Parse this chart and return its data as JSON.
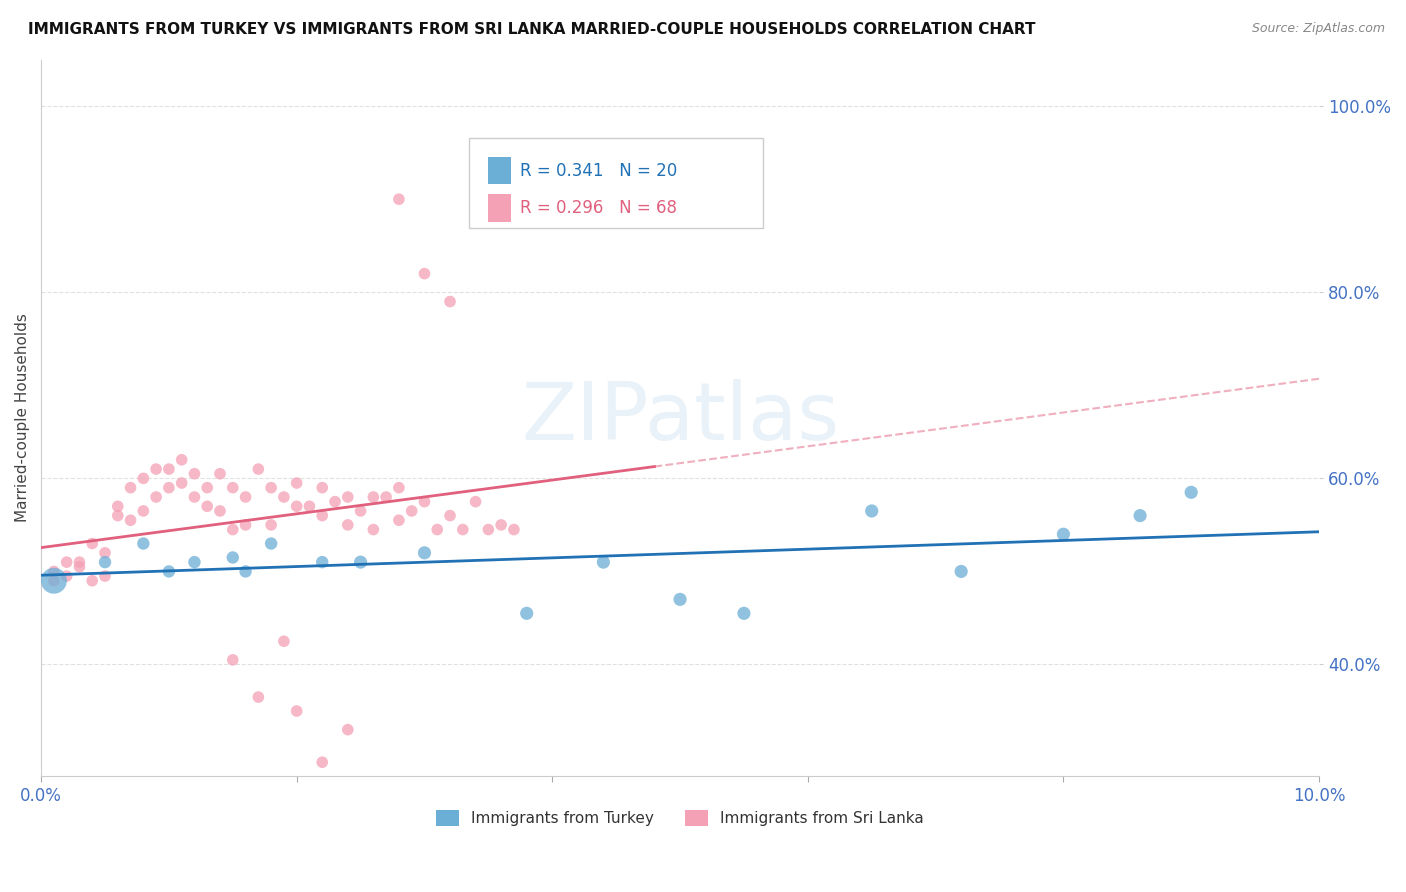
{
  "title": "IMMIGRANTS FROM TURKEY VS IMMIGRANTS FROM SRI LANKA MARRIED-COUPLE HOUSEHOLDS CORRELATION CHART",
  "source": "Source: ZipAtlas.com",
  "ylabel": "Married-couple Households",
  "xlim": [
    0.0,
    0.1
  ],
  "ylim": [
    0.28,
    1.05
  ],
  "yticks": [
    0.4,
    0.6,
    0.8,
    1.0
  ],
  "yticklabels": [
    "40.0%",
    "60.0%",
    "80.0%",
    "100.0%"
  ],
  "turkey_R": 0.341,
  "turkey_N": 20,
  "srilanka_R": 0.296,
  "srilanka_N": 68,
  "background_color": "#ffffff",
  "turkey_color": "#6baed6",
  "turkey_line_color": "#2171b5",
  "srilanka_color": "#f4a0b5",
  "srilanka_line_color": "#e0607e",
  "turkey_x": [
    0.001,
    0.005,
    0.008,
    0.01,
    0.012,
    0.015,
    0.016,
    0.018,
    0.022,
    0.025,
    0.03,
    0.038,
    0.044,
    0.05,
    0.055,
    0.065,
    0.072,
    0.08,
    0.086,
    0.09
  ],
  "turkey_y": [
    0.49,
    0.51,
    0.53,
    0.5,
    0.51,
    0.515,
    0.5,
    0.53,
    0.51,
    0.51,
    0.52,
    0.455,
    0.51,
    0.47,
    0.455,
    0.565,
    0.5,
    0.54,
    0.56,
    0.585
  ],
  "turkey_size": [
    350,
    80,
    80,
    80,
    80,
    80,
    80,
    80,
    80,
    90,
    90,
    90,
    90,
    90,
    90,
    90,
    90,
    90,
    90,
    90
  ],
  "srilanka_x": [
    0.001,
    0.001,
    0.002,
    0.002,
    0.003,
    0.003,
    0.004,
    0.004,
    0.005,
    0.005,
    0.006,
    0.006,
    0.007,
    0.007,
    0.008,
    0.008,
    0.009,
    0.009,
    0.01,
    0.01,
    0.011,
    0.011,
    0.012,
    0.012,
    0.013,
    0.013,
    0.014,
    0.014,
    0.015,
    0.015,
    0.016,
    0.016,
    0.017,
    0.018,
    0.018,
    0.019,
    0.02,
    0.02,
    0.021,
    0.022,
    0.022,
    0.023,
    0.024,
    0.024,
    0.025,
    0.026,
    0.026,
    0.027,
    0.028,
    0.028,
    0.029,
    0.03,
    0.031,
    0.032,
    0.033,
    0.034,
    0.035,
    0.036,
    0.037,
    0.02,
    0.022,
    0.024,
    0.015,
    0.017,
    0.019,
    0.028,
    0.03,
    0.032
  ],
  "srilanka_y": [
    0.49,
    0.5,
    0.51,
    0.495,
    0.51,
    0.505,
    0.49,
    0.53,
    0.495,
    0.52,
    0.56,
    0.57,
    0.555,
    0.59,
    0.565,
    0.6,
    0.58,
    0.61,
    0.59,
    0.61,
    0.62,
    0.595,
    0.58,
    0.605,
    0.59,
    0.57,
    0.605,
    0.565,
    0.545,
    0.59,
    0.58,
    0.55,
    0.61,
    0.59,
    0.55,
    0.58,
    0.595,
    0.57,
    0.57,
    0.56,
    0.59,
    0.575,
    0.58,
    0.55,
    0.565,
    0.58,
    0.545,
    0.58,
    0.555,
    0.59,
    0.565,
    0.575,
    0.545,
    0.56,
    0.545,
    0.575,
    0.545,
    0.55,
    0.545,
    0.35,
    0.295,
    0.33,
    0.405,
    0.365,
    0.425,
    0.9,
    0.82,
    0.79
  ],
  "srilanka_size": 70,
  "grid_color": "#e0e0e0",
  "tick_color": "#4472c4",
  "legend_turkey_text": "R = 0.341   N = 20",
  "legend_srilanka_text": "R = 0.296   N = 68"
}
